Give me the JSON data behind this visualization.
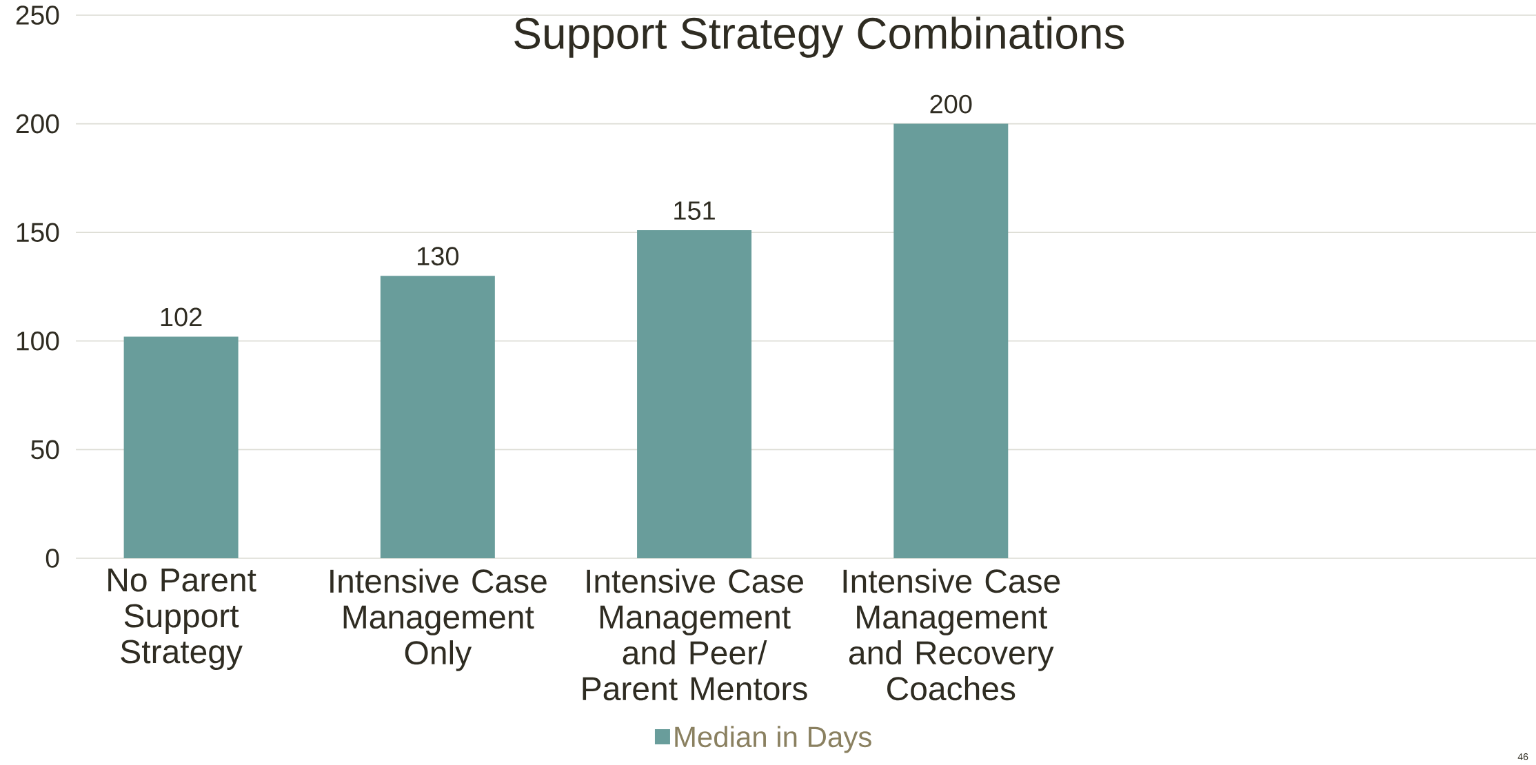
{
  "chart_data": {
    "type": "bar",
    "title": "Support Strategy Combinations",
    "categories": [
      "No Parent Support Strategy",
      "Intensive Case Management Only",
      "Intensive Case Management and Peer/ Parent Mentors",
      "Intensive Case Management and Recovery Coaches"
    ],
    "series": [
      {
        "name": "Median in Days",
        "color": "#699d9b",
        "values": [
          102,
          130,
          151,
          200
        ]
      }
    ],
    "ylim": [
      0,
      250
    ],
    "yticks": [
      0,
      50,
      100,
      150,
      200,
      250
    ],
    "grid": "y",
    "legend": "bottom",
    "data_labels": true,
    "annotations": [
      "46"
    ]
  }
}
